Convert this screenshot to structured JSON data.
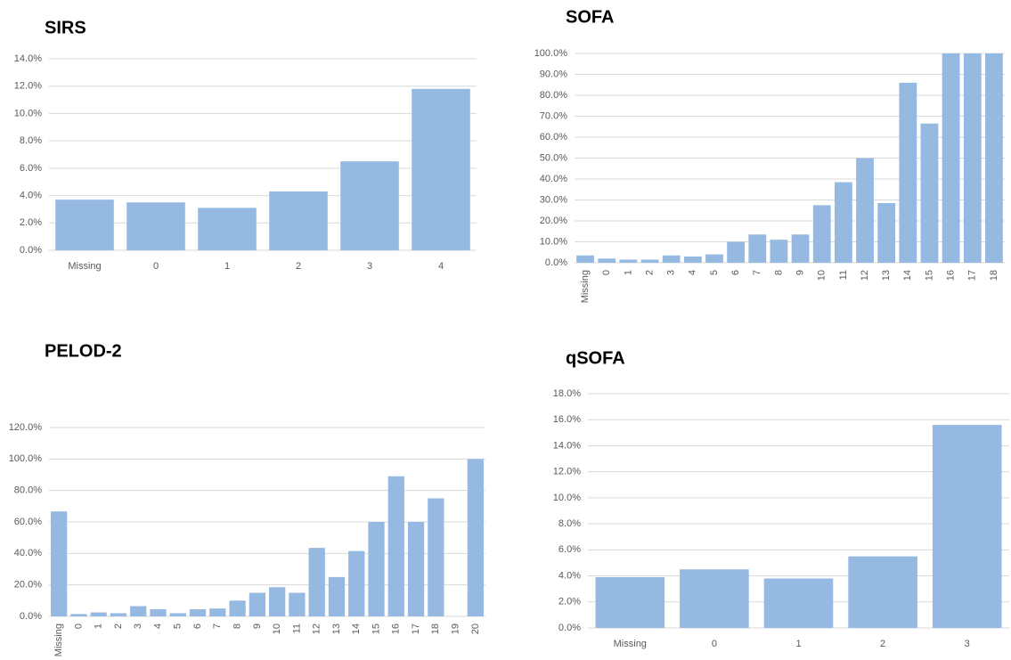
{
  "chart_data": [
    {
      "type": "bar",
      "title": "SIRS",
      "categories": [
        "Missing",
        "0",
        "1",
        "2",
        "3",
        "4"
      ],
      "values": [
        3.7,
        3.5,
        3.1,
        4.3,
        6.5,
        11.8
      ],
      "color": "#95b9e1",
      "ylim": [
        0,
        14
      ],
      "yticks": [
        {
          "value": 0,
          "label": "0.0%"
        },
        {
          "value": 2,
          "label": "2.0%"
        },
        {
          "value": 4,
          "label": "4.0%"
        },
        {
          "value": 6,
          "label": "6.0%"
        },
        {
          "value": 8,
          "label": "8.0%"
        },
        {
          "value": 10,
          "label": "10.0%"
        },
        {
          "value": 12,
          "label": "12.0%"
        },
        {
          "value": 14,
          "label": "14.0%"
        }
      ],
      "grid": true,
      "x_label_rotation": 0
    },
    {
      "type": "bar",
      "title": "SOFA",
      "categories": [
        "Missing",
        "0",
        "1",
        "2",
        "3",
        "4",
        "5",
        "6",
        "7",
        "8",
        "9",
        "10",
        "11",
        "12",
        "13",
        "14",
        "15",
        "16",
        "17",
        "18"
      ],
      "values": [
        3.5,
        2,
        1.5,
        1.5,
        3.5,
        3,
        4,
        10,
        13.5,
        11,
        13.5,
        27.5,
        38.5,
        50,
        28.5,
        86,
        66.5,
        100,
        100,
        100
      ],
      "color": "#95b9e1",
      "ylim": [
        0,
        100
      ],
      "yticks": [
        {
          "value": 0,
          "label": "0.0%"
        },
        {
          "value": 10,
          "label": "10.0%"
        },
        {
          "value": 20,
          "label": "20.0%"
        },
        {
          "value": 30,
          "label": "30.0%"
        },
        {
          "value": 40,
          "label": "40.0%"
        },
        {
          "value": 50,
          "label": "50.0%"
        },
        {
          "value": 60,
          "label": "60.0%"
        },
        {
          "value": 70,
          "label": "70.0%"
        },
        {
          "value": 80,
          "label": "80.0%"
        },
        {
          "value": 90,
          "label": "90.0%"
        },
        {
          "value": 100,
          "label": "100.0%"
        }
      ],
      "grid": true,
      "x_label_rotation": -90
    },
    {
      "type": "bar",
      "title": "PELOD-2",
      "categories": [
        "Missing",
        "0",
        "1",
        "2",
        "3",
        "4",
        "5",
        "6",
        "7",
        "8",
        "9",
        "10",
        "11",
        "12",
        "13",
        "14",
        "15",
        "16",
        "17",
        "18",
        "19",
        "20"
      ],
      "values": [
        66.7,
        1.5,
        2.5,
        2,
        6.5,
        4.5,
        2,
        4.5,
        5,
        10,
        15,
        18.5,
        15,
        43.5,
        25,
        41.5,
        60,
        89,
        60,
        75,
        0,
        100
      ],
      "color": "#95b9e1",
      "ylim": [
        0,
        120
      ],
      "yticks": [
        {
          "value": 0,
          "label": "0.0%"
        },
        {
          "value": 20,
          "label": "20.0%"
        },
        {
          "value": 40,
          "label": "40.0%"
        },
        {
          "value": 60,
          "label": "60.0%"
        },
        {
          "value": 80,
          "label": "80.0%"
        },
        {
          "value": 100,
          "label": "100.0%"
        },
        {
          "value": 120,
          "label": "120.0%"
        }
      ],
      "grid": true,
      "x_label_rotation": -90
    },
    {
      "type": "bar",
      "title": "qSOFA",
      "categories": [
        "Missing",
        "0",
        "1",
        "2",
        "3"
      ],
      "values": [
        3.9,
        4.5,
        3.8,
        5.5,
        15.6
      ],
      "color": "#95b9e1",
      "ylim": [
        0,
        18
      ],
      "yticks": [
        {
          "value": 0,
          "label": "0.0%"
        },
        {
          "value": 2,
          "label": "2.0%"
        },
        {
          "value": 4,
          "label": "4.0%"
        },
        {
          "value": 6,
          "label": "6.0%"
        },
        {
          "value": 8,
          "label": "8.0%"
        },
        {
          "value": 10,
          "label": "10.0%"
        },
        {
          "value": 12,
          "label": "12.0%"
        },
        {
          "value": 14,
          "label": "14.0%"
        },
        {
          "value": 16,
          "label": "16.0%"
        },
        {
          "value": 18,
          "label": "18.0%"
        }
      ],
      "grid": true,
      "x_label_rotation": 0
    }
  ]
}
